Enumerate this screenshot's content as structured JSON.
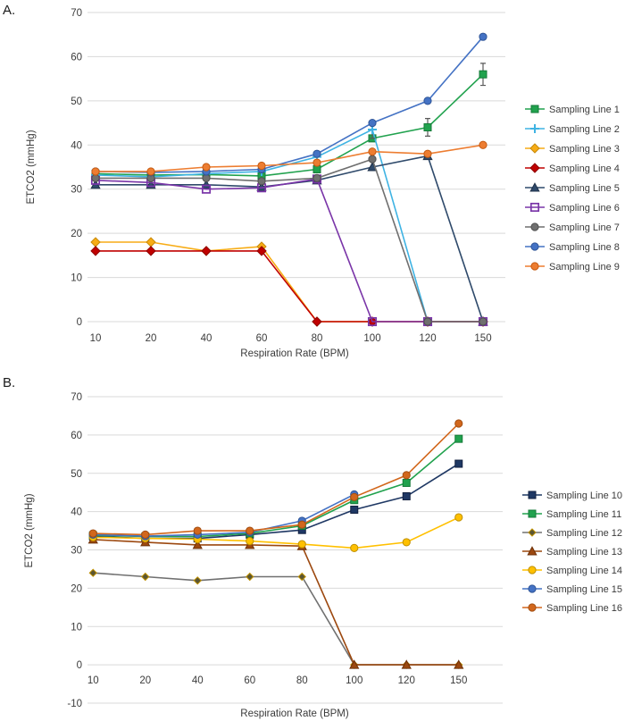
{
  "figure": {
    "panel_a_label": "A.",
    "panel_b_label": "B."
  },
  "chart_data": [
    {
      "id": "panel_a",
      "type": "line",
      "title": "",
      "xlabel": "Respiration Rate (BPM)",
      "ylabel": "ETCO2 (mmHg)",
      "categories": [
        10,
        20,
        40,
        60,
        80,
        100,
        120,
        150
      ],
      "ylim": [
        0,
        70
      ],
      "yticks": [
        0,
        10,
        20,
        30,
        40,
        50,
        60,
        70
      ],
      "grid": true,
      "legend_position": "right",
      "error_bar_color": "#595959",
      "series": [
        {
          "name": "Sampling Line 1",
          "color": "#21A24E",
          "edge": "#157A38",
          "marker": "square",
          "values": [
            33.5,
            33.2,
            33.3,
            33,
            34.5,
            41.5,
            44,
            56
          ],
          "error_bars": [
            {
              "x": 120,
              "pm": 2
            },
            {
              "x": 150,
              "pm": 2.5
            }
          ]
        },
        {
          "name": "Sampling Line 2",
          "color": "#3FB3E3",
          "marker": "plus",
          "values": [
            33.2,
            32.8,
            33.5,
            34,
            37.3,
            43.5,
            0,
            0
          ],
          "error_bars": [
            {
              "x": 100,
              "pm": 2
            }
          ]
        },
        {
          "name": "Sampling Line 3",
          "color": "#F7AC16",
          "edge": "#C88A0A",
          "marker": "diamond",
          "values": [
            18,
            18,
            16,
            17,
            0,
            0,
            0,
            0
          ]
        },
        {
          "name": "Sampling Line 4",
          "color": "#C00000",
          "edge": "#8F0000",
          "marker": "diamond",
          "values": [
            16,
            16,
            16,
            16,
            0,
            0,
            0,
            0
          ]
        },
        {
          "name": "Sampling Line 5",
          "color": "#2F4A6B",
          "edge": "#1E3048",
          "marker": "triangle",
          "values": [
            31,
            31,
            31,
            30.5,
            32,
            35,
            37.5,
            0
          ]
        },
        {
          "name": "Sampling Line 6",
          "color": "#7A35A8",
          "marker": "square-open",
          "values": [
            32,
            31.5,
            30,
            30.3,
            32.3,
            0,
            0,
            0
          ]
        },
        {
          "name": "Sampling Line 7",
          "color": "#6F6F6F",
          "edge": "#4F4F4F",
          "marker": "circle",
          "values": [
            32.5,
            32.5,
            32.5,
            31.8,
            32.5,
            36.8,
            0,
            0
          ]
        },
        {
          "name": "Sampling Line 8",
          "color": "#4472C4",
          "edge": "#2F5597",
          "marker": "circle",
          "values": [
            34,
            33.8,
            34,
            34.5,
            38,
            45,
            50,
            64.5
          ]
        },
        {
          "name": "Sampling Line 9",
          "color": "#ED7D31",
          "edge": "#C55A11",
          "marker": "circle",
          "values": [
            34,
            34,
            35,
            35.3,
            36,
            38.5,
            38,
            40
          ]
        }
      ]
    },
    {
      "id": "panel_b",
      "type": "line",
      "title": "",
      "xlabel": "Respiration Rate (BPM)",
      "ylabel": "ETCO2 (mmHg)",
      "categories": [
        10,
        20,
        40,
        60,
        80,
        100,
        120,
        150
      ],
      "ylim": [
        -10,
        70
      ],
      "yticks": [
        -10,
        0,
        10,
        20,
        30,
        40,
        50,
        60,
        70
      ],
      "grid": true,
      "legend_position": "right",
      "error_bar_color": "#595959",
      "series": [
        {
          "name": "Sampling Line 10",
          "color": "#1F3864",
          "edge": "#122140",
          "marker": "square",
          "values": [
            33.5,
            33,
            33,
            34,
            35.2,
            40.5,
            44,
            52.5
          ]
        },
        {
          "name": "Sampling Line 11",
          "color": "#21A24E",
          "edge": "#157A38",
          "marker": "square",
          "values": [
            33.8,
            33.5,
            33.5,
            34.3,
            36.3,
            43,
            47.5,
            59
          ]
        },
        {
          "name": "Sampling Line 12",
          "color": "#5B5633",
          "edge": "#BF9000",
          "line_color": "#707070",
          "marker": "diamond-small",
          "values": [
            24,
            23,
            22,
            23,
            23,
            0,
            0,
            0
          ]
        },
        {
          "name": "Sampling Line 13",
          "color": "#9C480F",
          "edge": "#6E3008",
          "marker": "triangle",
          "values": [
            32.7,
            32,
            31.3,
            31.3,
            31,
            0,
            0,
            0
          ]
        },
        {
          "name": "Sampling Line 14",
          "color": "#FFC000",
          "edge": "#BF9000",
          "marker": "circle",
          "values": [
            33.3,
            33,
            32.8,
            32.3,
            31.5,
            30.5,
            32,
            38.5
          ]
        },
        {
          "name": "Sampling Line 15",
          "color": "#4472C4",
          "edge": "#2F5597",
          "marker": "circle",
          "values": [
            34,
            33.6,
            34,
            34.6,
            37.6,
            44.5,
            null,
            null
          ]
        },
        {
          "name": "Sampling Line 16",
          "color": "#D2671C",
          "edge": "#A34E12",
          "marker": "circle",
          "values": [
            34.3,
            34,
            35,
            35,
            36.6,
            43.8,
            49.5,
            63
          ]
        }
      ]
    }
  ]
}
